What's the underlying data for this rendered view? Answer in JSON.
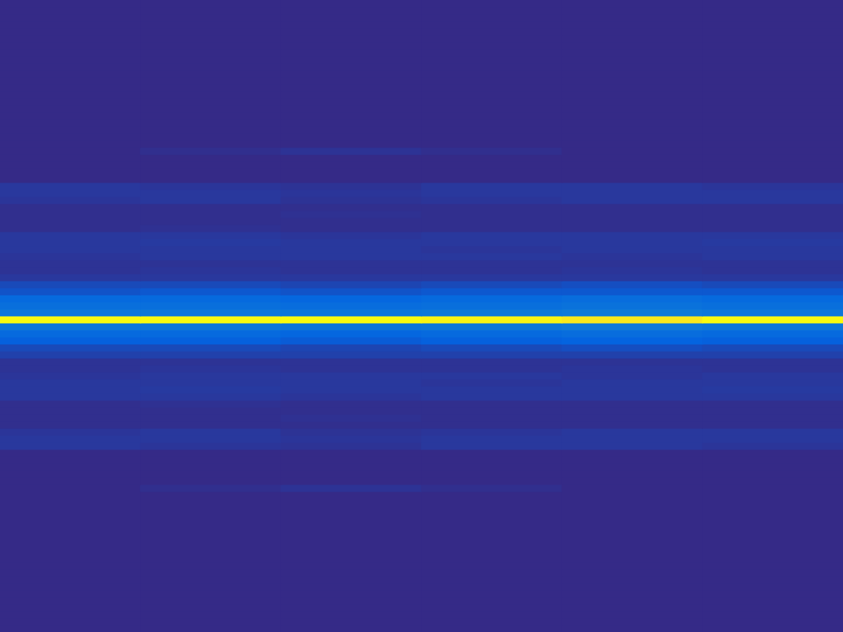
{
  "chart_data": {
    "type": "heatmap",
    "tick_labels": false,
    "zlim": [
      0,
      1
    ],
    "cells": [
      [
        0,
        0,
        0,
        0,
        0,
        0
      ],
      [
        0,
        0,
        0,
        0,
        0,
        0
      ],
      [
        0,
        0,
        0,
        0,
        0,
        0
      ],
      [
        0,
        0,
        0,
        0,
        0,
        0
      ],
      [
        0,
        0,
        0,
        0,
        0,
        0
      ],
      [
        0,
        0,
        0,
        0,
        0,
        0
      ],
      [
        0,
        0,
        0,
        0,
        0,
        0
      ],
      [
        0,
        0,
        0,
        0,
        0,
        0
      ],
      [
        0,
        0,
        0,
        0,
        0,
        0
      ],
      [
        0,
        0,
        0,
        0,
        0,
        0
      ],
      [
        0,
        0,
        0,
        0,
        0,
        0
      ],
      [
        0,
        0,
        0,
        0,
        0,
        0
      ],
      [
        0,
        0,
        0,
        0,
        0,
        0
      ],
      [
        0,
        0,
        0,
        0,
        0,
        0
      ],
      [
        0,
        0,
        0,
        0,
        0,
        0
      ],
      [
        0,
        0,
        0,
        0,
        0,
        0
      ],
      [
        0,
        0,
        0,
        0,
        0,
        0
      ],
      [
        0,
        0,
        0,
        0,
        0,
        0
      ],
      [
        0,
        0,
        0,
        0,
        0,
        0
      ],
      [
        0,
        0,
        0,
        0,
        0,
        0
      ],
      [
        0,
        0,
        0,
        0,
        0,
        0
      ],
      [
        0,
        0.01,
        0.02,
        0.01,
        0,
        0
      ],
      [
        0,
        0,
        0,
        0,
        0,
        0
      ],
      [
        0,
        0,
        0,
        0,
        0,
        0
      ],
      [
        0,
        0,
        0,
        0,
        0,
        0
      ],
      [
        0,
        0,
        0,
        0,
        0,
        0
      ],
      [
        0.03,
        0.025,
        0.02,
        0.03,
        0.03,
        0.025
      ],
      [
        0.03,
        0.03,
        0.025,
        0.03,
        0.03,
        0.03
      ],
      [
        0.025,
        0.03,
        0.02,
        0.025,
        0.03,
        0.03
      ],
      [
        0.01,
        0.01,
        0.01,
        0.01,
        0.01,
        0.01
      ],
      [
        0.01,
        0.01,
        0.015,
        0.01,
        0.01,
        0.01
      ],
      [
        0.01,
        0.01,
        0.01,
        0.01,
        0.01,
        0.01
      ],
      [
        0.01,
        0.015,
        0.01,
        0.01,
        0.01,
        0.01
      ],
      [
        0.03,
        0.03,
        0.025,
        0.03,
        0.03,
        0.03
      ],
      [
        0.03,
        0.035,
        0.03,
        0.03,
        0.03,
        0.035
      ],
      [
        0.03,
        0.03,
        0.03,
        0.025,
        0.03,
        0.03
      ],
      [
        0.025,
        0.03,
        0.03,
        0.03,
        0.025,
        0.03
      ],
      [
        0.02,
        0.02,
        0.02,
        0.02,
        0.02,
        0.02
      ],
      [
        0.02,
        0.025,
        0.02,
        0.02,
        0.025,
        0.02
      ],
      [
        0.03,
        0.03,
        0.03,
        0.03,
        0.03,
        0.03
      ],
      [
        0.07,
        0.07,
        0.06,
        0.07,
        0.08,
        0.07
      ],
      [
        0.09,
        0.1,
        0.09,
        0.1,
        0.1,
        0.1
      ],
      [
        0.15,
        0.15,
        0.14,
        0.15,
        0.16,
        0.15
      ],
      [
        0.17,
        0.17,
        0.16,
        0.17,
        0.18,
        0.17
      ],
      [
        0.2,
        0.2,
        0.19,
        0.2,
        0.21,
        0.2
      ],
      [
        1,
        1,
        1,
        0.98,
        0.95,
        1
      ],
      [
        0.2,
        0.2,
        0.19,
        0.2,
        0.21,
        0.2
      ],
      [
        0.15,
        0.15,
        0.14,
        0.15,
        0.16,
        0.15
      ],
      [
        0.12,
        0.12,
        0.11,
        0.12,
        0.13,
        0.12
      ],
      [
        0.07,
        0.07,
        0.06,
        0.07,
        0.08,
        0.07
      ],
      [
        0.05,
        0.05,
        0.05,
        0.05,
        0.05,
        0.05
      ],
      [
        0.02,
        0.02,
        0.02,
        0.02,
        0.02,
        0.02
      ],
      [
        0.02,
        0.025,
        0.02,
        0.02,
        0.025,
        0.02
      ],
      [
        0.025,
        0.03,
        0.03,
        0.03,
        0.025,
        0.03
      ],
      [
        0.03,
        0.03,
        0.03,
        0.025,
        0.03,
        0.03
      ],
      [
        0.03,
        0.035,
        0.03,
        0.03,
        0.03,
        0.035
      ],
      [
        0.03,
        0.03,
        0.025,
        0.03,
        0.03,
        0.03
      ],
      [
        0.01,
        0.015,
        0.01,
        0.01,
        0.01,
        0.01
      ],
      [
        0.01,
        0.01,
        0.01,
        0.01,
        0.01,
        0.01
      ],
      [
        0.01,
        0.01,
        0.015,
        0.01,
        0.01,
        0.01
      ],
      [
        0.01,
        0.01,
        0.01,
        0.01,
        0.01,
        0.01
      ],
      [
        0.025,
        0.03,
        0.02,
        0.025,
        0.03,
        0.03
      ],
      [
        0.03,
        0.03,
        0.025,
        0.03,
        0.03,
        0.03
      ],
      [
        0.03,
        0.025,
        0.02,
        0.03,
        0.03,
        0.025
      ],
      [
        0,
        0,
        0,
        0,
        0,
        0
      ],
      [
        0,
        0,
        0,
        0,
        0,
        0
      ],
      [
        0,
        0,
        0,
        0,
        0,
        0
      ],
      [
        0,
        0,
        0,
        0,
        0,
        0
      ],
      [
        0,
        0,
        0,
        0,
        0,
        0
      ],
      [
        0,
        0.01,
        0.02,
        0.01,
        0,
        0
      ],
      [
        0,
        0,
        0,
        0,
        0,
        0
      ],
      [
        0,
        0,
        0,
        0,
        0,
        0
      ],
      [
        0,
        0,
        0,
        0,
        0,
        0
      ],
      [
        0,
        0,
        0,
        0,
        0,
        0
      ],
      [
        0,
        0,
        0,
        0,
        0,
        0
      ],
      [
        0,
        0,
        0,
        0,
        0,
        0
      ],
      [
        0,
        0,
        0,
        0,
        0,
        0
      ],
      [
        0,
        0,
        0,
        0,
        0,
        0
      ],
      [
        0,
        0,
        0,
        0,
        0,
        0
      ],
      [
        0,
        0,
        0,
        0,
        0,
        0
      ],
      [
        0,
        0,
        0,
        0,
        0,
        0
      ],
      [
        0,
        0,
        0,
        0,
        0,
        0
      ],
      [
        0,
        0,
        0,
        0,
        0,
        0
      ],
      [
        0,
        0,
        0,
        0,
        0,
        0
      ],
      [
        0,
        0,
        0,
        0,
        0,
        0
      ],
      [
        0,
        0,
        0,
        0,
        0,
        0
      ],
      [
        0,
        0,
        0,
        0,
        0,
        0
      ],
      [
        0,
        0,
        0,
        0,
        0,
        0
      ],
      [
        0,
        0,
        0,
        0,
        0,
        0
      ],
      [
        0,
        0,
        0,
        0,
        0,
        0
      ]
    ]
  }
}
